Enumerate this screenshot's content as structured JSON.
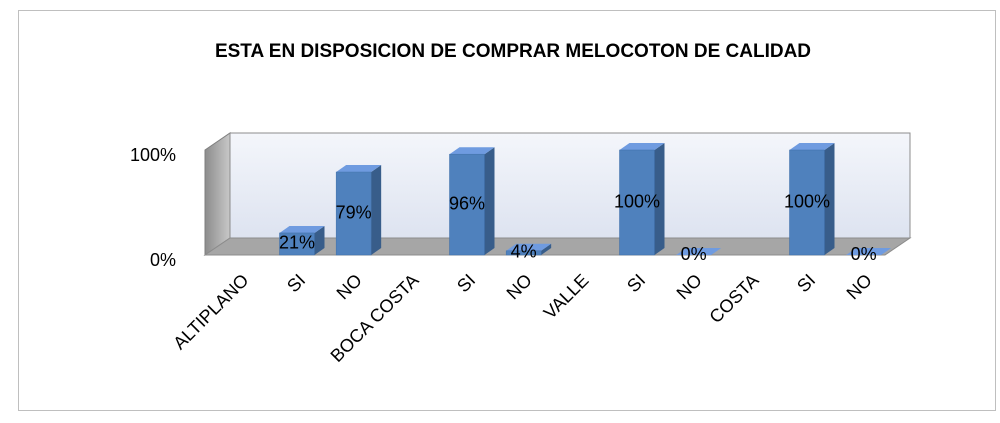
{
  "chart_data": {
    "type": "bar3d",
    "title": "ESTA EN DISPOSICION DE COMPRAR MELOCOTON DE CALIDAD",
    "categories": [
      "ALTIPLANO",
      "SI",
      "NO",
      "BOCA COSTA",
      "SI",
      "NO",
      "VALLE",
      "SI",
      "NO",
      "COSTA",
      "SI",
      "NO"
    ],
    "values": [
      null,
      21,
      79,
      null,
      96,
      4,
      null,
      100,
      0,
      null,
      100,
      0
    ],
    "value_labels": [
      null,
      "21%",
      "79%",
      null,
      "96%",
      "4%",
      null,
      "100%",
      "0%",
      null,
      "100%",
      "0%"
    ],
    "color": "#4f81bd",
    "ylim": [
      0,
      100
    ],
    "yticks": [
      {
        "value": 0,
        "label": "0%"
      },
      {
        "value": 100,
        "label": "100%"
      }
    ]
  }
}
